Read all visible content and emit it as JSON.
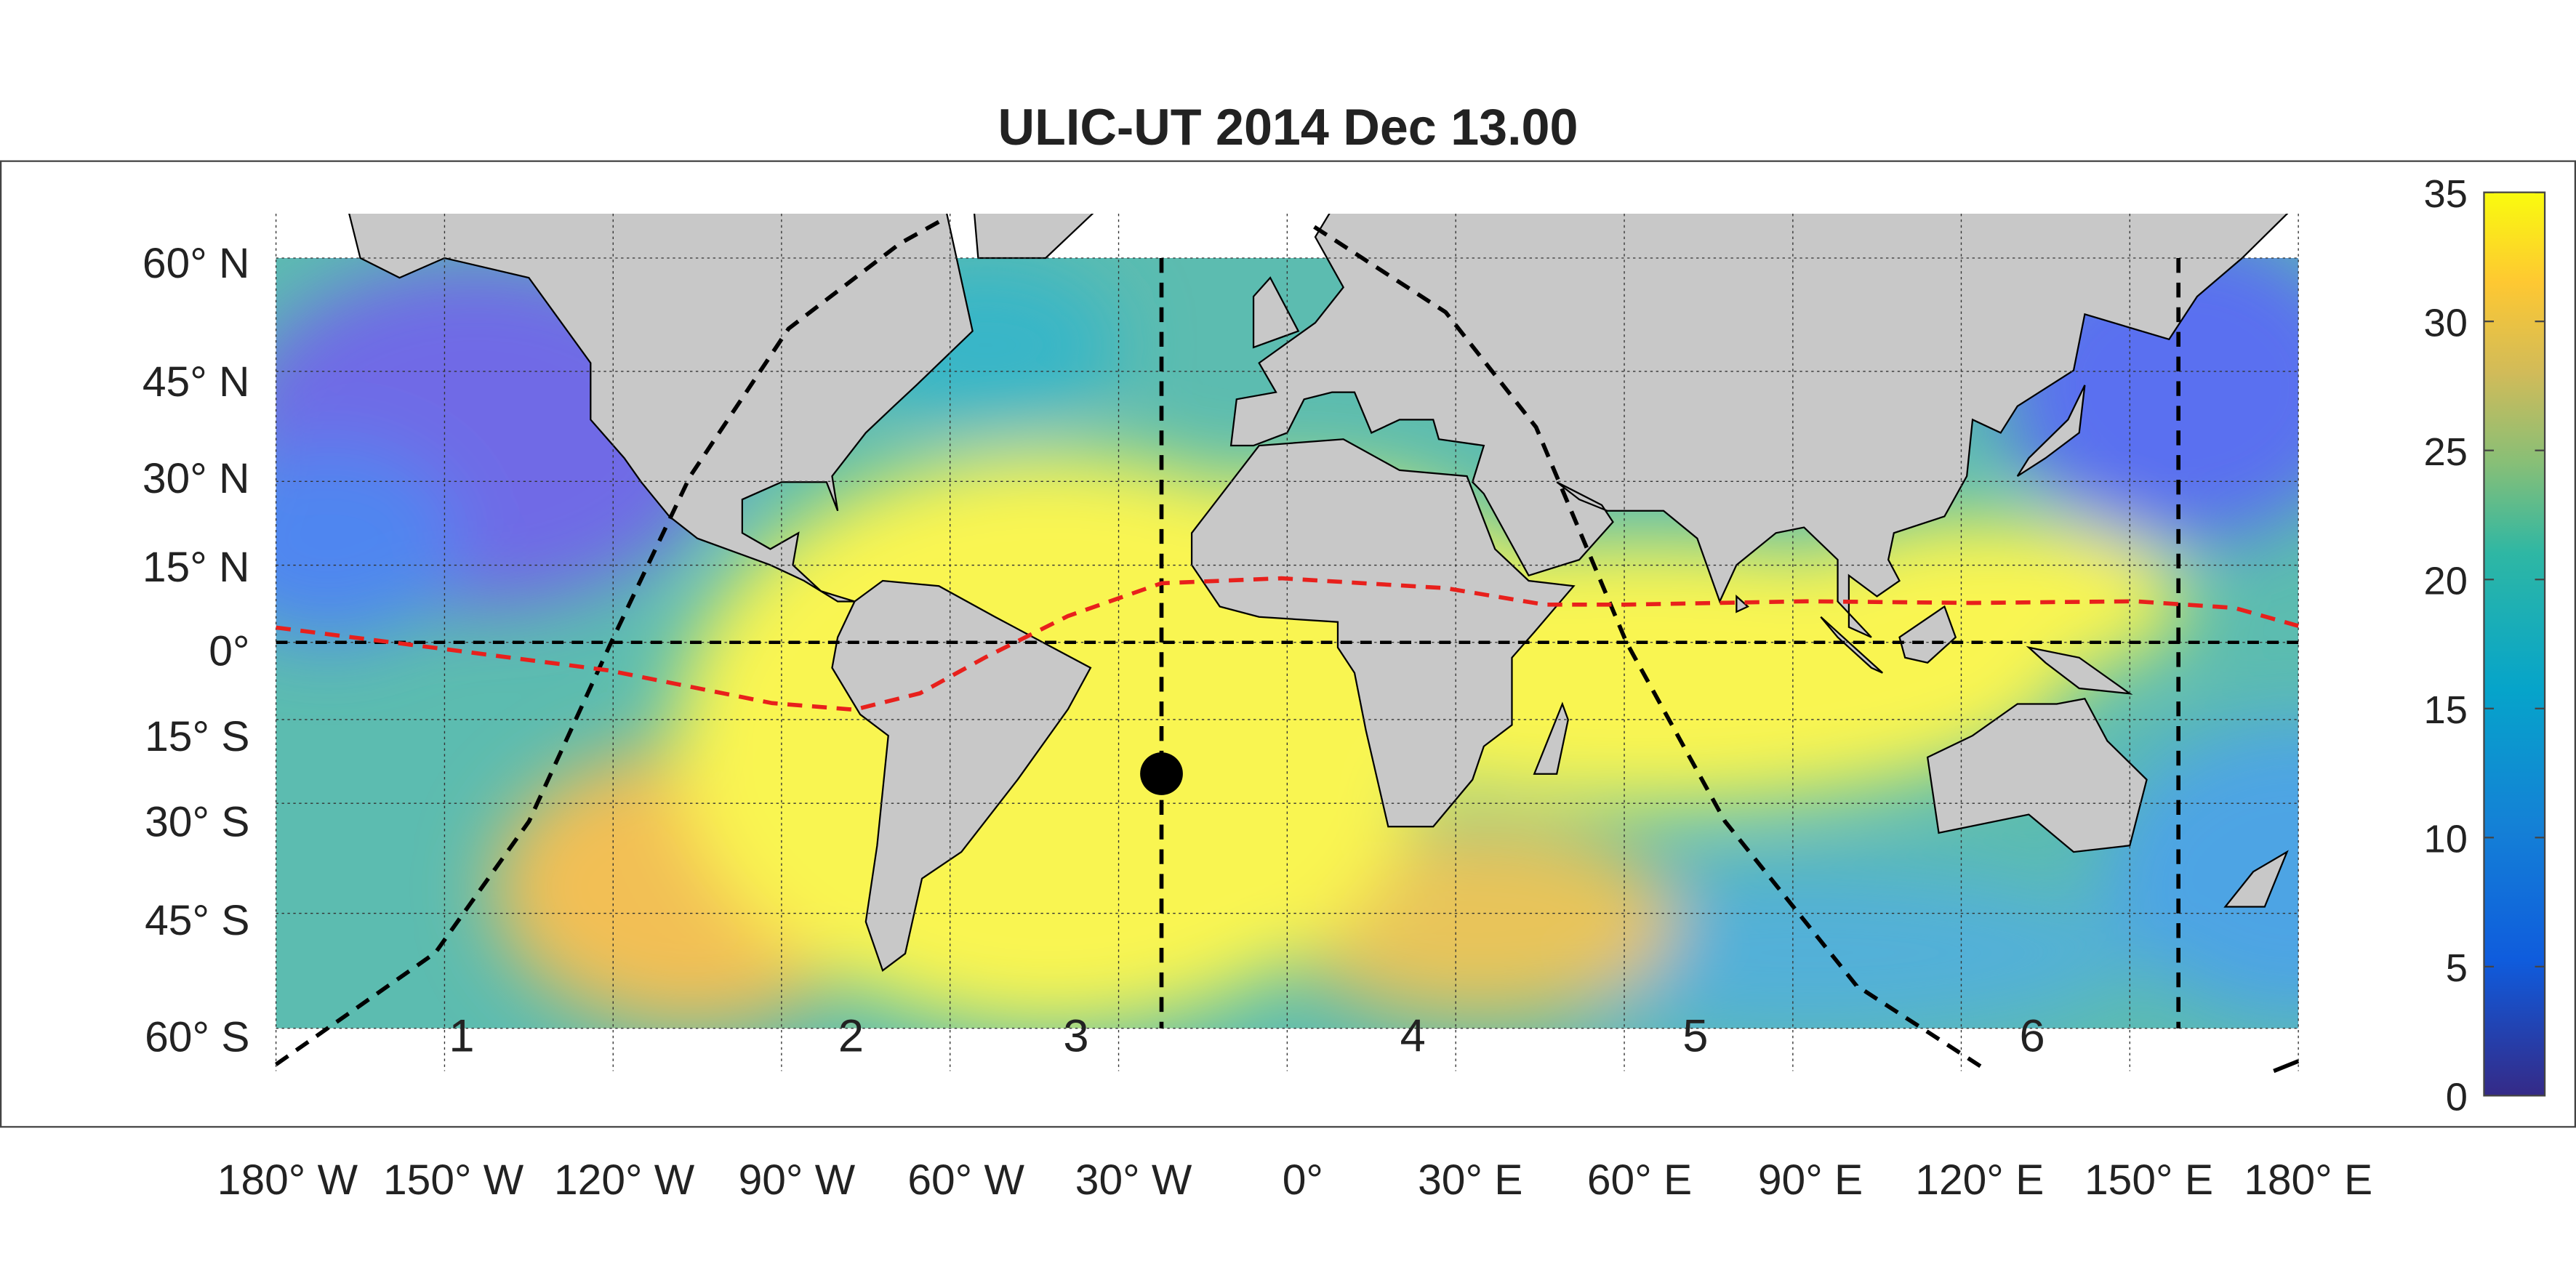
{
  "title": "ULIC-UT 2014 Dec 13.00",
  "map": {
    "latitude_labels": [
      "60° N",
      "45° N",
      "30° N",
      "15° N",
      "0°",
      "15° S",
      "30° S",
      "45° S",
      "60° S"
    ],
    "longitude_labels": [
      "180° W",
      "150° W",
      "120° W",
      "90° W",
      "60° W",
      "30° W",
      "0°",
      "30° E",
      "60° E",
      "90° E",
      "120° E",
      "150° E",
      "180° E"
    ],
    "region_labels": [
      "1",
      "2",
      "3",
      "4",
      "5",
      "6"
    ]
  },
  "colorbar": {
    "ylim": [
      0,
      35
    ],
    "yticks": [
      0,
      5,
      10,
      15,
      20,
      25,
      30,
      35
    ]
  }
}
